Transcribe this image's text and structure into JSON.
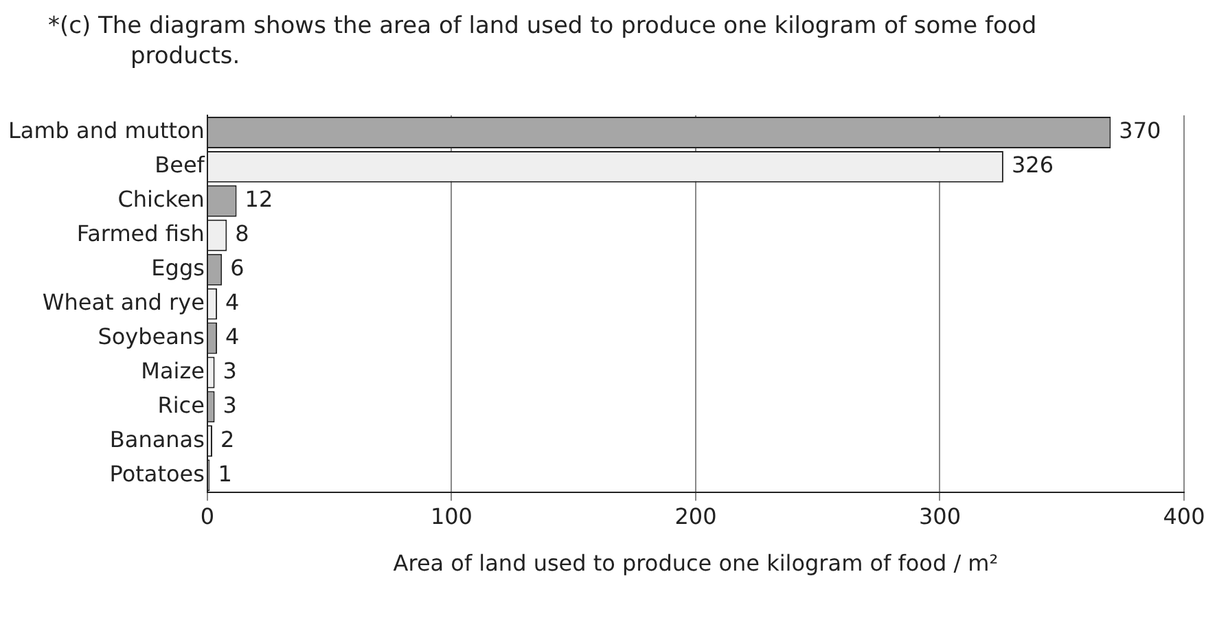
{
  "chart_data": {
    "type": "bar",
    "orientation": "horizontal",
    "title": "*(c)  The diagram shows the area of land used to produce one kilogram of some food products.",
    "xlabel": "Area of land used to produce one kilogram of food / m²",
    "categories": [
      "Lamb and mutton",
      "Beef",
      "Chicken",
      "Farmed fish",
      "Eggs",
      "Wheat and rye",
      "Soybeans",
      "Maize",
      "Rice",
      "Bananas",
      "Potatoes"
    ],
    "values": [
      370,
      326,
      12,
      8,
      6,
      4,
      4,
      3,
      3,
      2,
      1
    ],
    "colors": [
      "#a6a6a6",
      "#efefef",
      "#a6a6a6",
      "#efefef",
      "#a6a6a6",
      "#efefef",
      "#a6a6a6",
      "#efefef",
      "#a6a6a6",
      "#efefef",
      "#a6a6a6"
    ],
    "xlim": [
      0,
      400
    ],
    "xticks": [
      0,
      100,
      200,
      300,
      400
    ],
    "grid": "x",
    "data_labels": true,
    "legend": false
  }
}
